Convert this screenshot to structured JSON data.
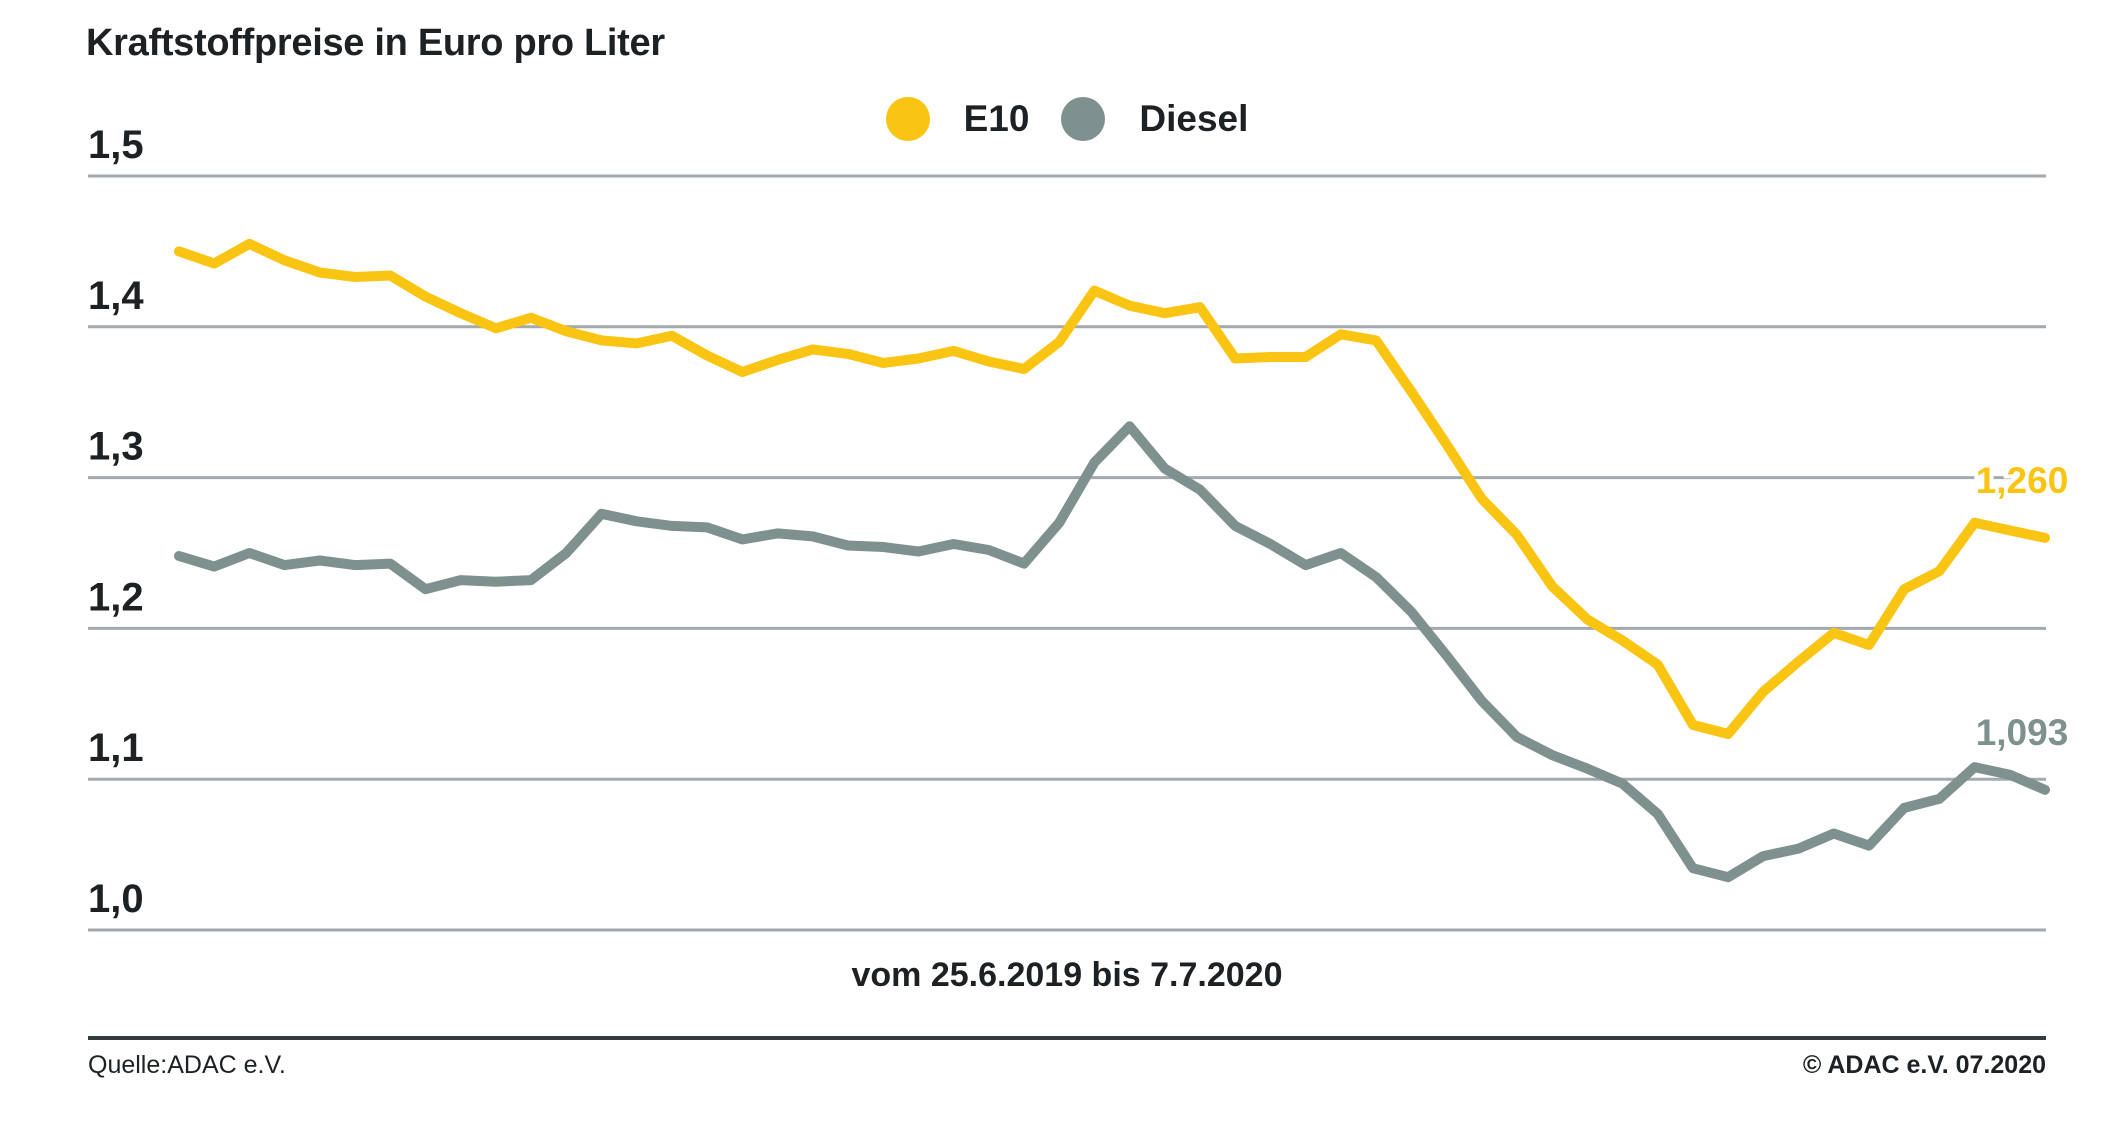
{
  "page": {
    "title": "Kraftstoffpreise in Euro pro Liter"
  },
  "legend": {
    "items": [
      {
        "label": "E10",
        "color": "#F9C412"
      },
      {
        "label": "Diesel",
        "color": "#7F918E"
      }
    ]
  },
  "caption": "vom 25.6.2019 bis 7.7.2020",
  "footer": {
    "source": "Quelle:ADAC e.V.",
    "copyright": "© ADAC e.V. 07.2020"
  },
  "colors": {
    "grid": "#A3A9AC",
    "text": "#1D2124",
    "separator": "#343B3E",
    "e10": "#F9C412",
    "diesel": "#7F918E"
  },
  "chart_data": {
    "type": "line",
    "title": "Kraftstoffpreise in Euro pro Liter",
    "xlabel": "vom 25.6.2019 bis 7.7.2020",
    "ylabel": "Euro pro Liter",
    "x_start": "25.6.2019",
    "x_end": "7.7.2020",
    "x_interval": "weekly",
    "ylim": [
      0.95,
      1.52
    ],
    "grid": true,
    "legend_position": "top-center",
    "yticks": [
      {
        "label": "1,5",
        "value": 1.5
      },
      {
        "label": "1,4",
        "value": 1.4
      },
      {
        "label": "1,3",
        "value": 1.3
      },
      {
        "label": "1,2",
        "value": 1.2
      },
      {
        "label": "1,1",
        "value": 1.1
      },
      {
        "label": "1,0",
        "value": 1.0
      }
    ],
    "series": [
      {
        "name": "E10",
        "color": "#F9C412",
        "end_label": "1,260",
        "end_value": 1.26,
        "values": [
          1.45,
          1.442,
          1.455,
          1.444,
          1.436,
          1.433,
          1.434,
          1.42,
          1.409,
          1.399,
          1.406,
          1.397,
          1.391,
          1.389,
          1.394,
          1.381,
          1.37,
          1.378,
          1.385,
          1.382,
          1.376,
          1.379,
          1.384,
          1.377,
          1.372,
          1.39,
          1.424,
          1.414,
          1.409,
          1.413,
          1.379,
          1.38,
          1.38,
          1.395,
          1.391,
          1.357,
          1.322,
          1.286,
          1.262,
          1.228,
          1.206,
          1.192,
          1.176,
          1.136,
          1.13,
          1.158,
          1.178,
          1.197,
          1.189,
          1.226,
          1.238,
          1.27,
          1.265,
          1.26
        ]
      },
      {
        "name": "Diesel",
        "color": "#7F918E",
        "end_label": "1,093",
        "end_value": 1.093,
        "values": [
          1.248,
          1.241,
          1.25,
          1.242,
          1.245,
          1.242,
          1.243,
          1.226,
          1.232,
          1.231,
          1.232,
          1.25,
          1.276,
          1.271,
          1.268,
          1.267,
          1.259,
          1.263,
          1.261,
          1.255,
          1.254,
          1.251,
          1.256,
          1.252,
          1.243,
          1.27,
          1.31,
          1.334,
          1.306,
          1.292,
          1.268,
          1.256,
          1.242,
          1.25,
          1.234,
          1.211,
          1.182,
          1.152,
          1.128,
          1.116,
          1.107,
          1.097,
          1.077,
          1.041,
          1.035,
          1.049,
          1.054,
          1.064,
          1.056,
          1.081,
          1.087,
          1.108,
          1.103,
          1.093
        ]
      }
    ]
  }
}
